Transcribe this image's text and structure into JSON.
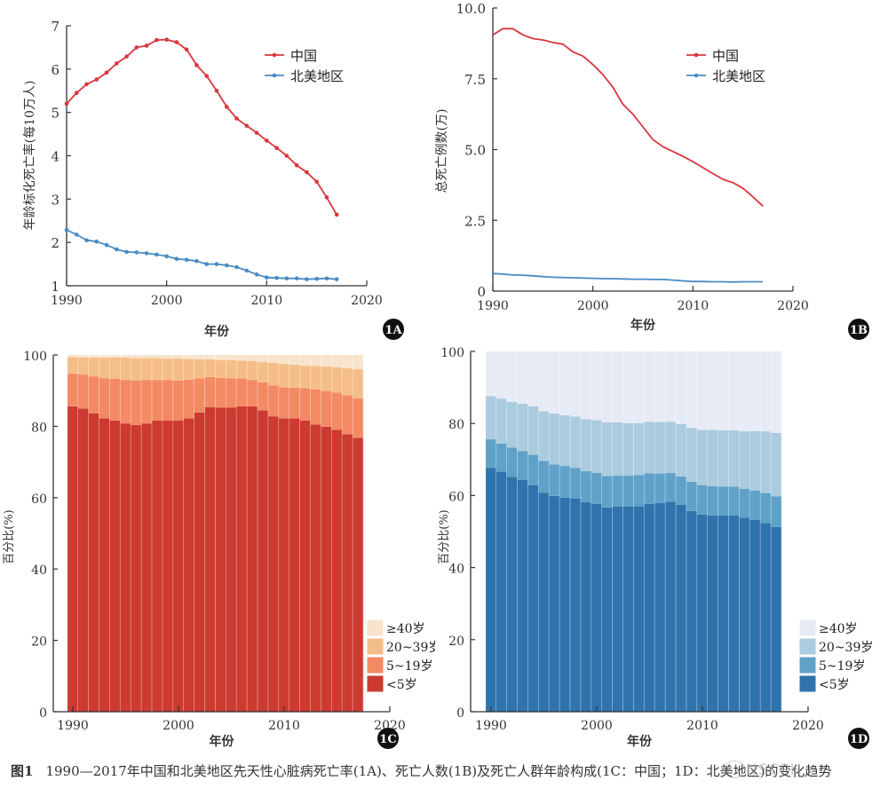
{
  "caption": {
    "label": "图1",
    "text": "1990—2017年中国和北美地区先天性心脏病死亡率(1A)、死亡人数(1B)及死亡人群年龄构成(1C：中国；1D：北美地区)的变化趋势",
    "watermark": "NSCPH"
  },
  "colors": {
    "china": "#d9363e",
    "north_america": "#4a8bc4",
    "c_lt5": "#cc3a30",
    "c_5_19": "#f48a64",
    "c_20_39": "#f5be88",
    "c_ge40": "#f8e4cc",
    "d_lt5": "#2f73ad",
    "d_5_19": "#5fa1c8",
    "d_20_39": "#abcbdf",
    "d_ge40": "#e6ebf5"
  },
  "chart_data": [
    {
      "id": "1A",
      "type": "line",
      "badge": "1A",
      "title": "",
      "xlabel": "年份",
      "ylabel": "年龄标化死亡率(每10万人)",
      "xlim": [
        1990,
        2020
      ],
      "ylim": [
        1,
        7
      ],
      "xticks": [
        1990,
        2000,
        2010,
        2020
      ],
      "yticks": [
        1,
        2,
        3,
        4,
        5,
        6,
        7
      ],
      "markers": true,
      "legend_position": "top-right",
      "x": [
        1990,
        1991,
        1992,
        1993,
        1994,
        1995,
        1996,
        1997,
        1998,
        1999,
        2000,
        2001,
        2002,
        2003,
        2004,
        2005,
        2006,
        2007,
        2008,
        2009,
        2010,
        2011,
        2012,
        2013,
        2014,
        2015,
        2016,
        2017
      ],
      "series": [
        {
          "name": "中国",
          "color_key": "china",
          "values": [
            5.2,
            5.45,
            5.65,
            5.76,
            5.92,
            6.13,
            6.29,
            6.5,
            6.54,
            6.67,
            6.68,
            6.62,
            6.45,
            6.09,
            5.84,
            5.5,
            5.13,
            4.86,
            4.69,
            4.53,
            4.35,
            4.18,
            4.0,
            3.78,
            3.62,
            3.4,
            3.04,
            2.64
          ]
        },
        {
          "name": "北美地区",
          "color_key": "north_america",
          "values": [
            2.29,
            2.18,
            2.05,
            2.02,
            1.94,
            1.84,
            1.78,
            1.77,
            1.75,
            1.72,
            1.68,
            1.62,
            1.6,
            1.57,
            1.5,
            1.5,
            1.47,
            1.43,
            1.35,
            1.26,
            1.19,
            1.18,
            1.17,
            1.17,
            1.15,
            1.16,
            1.17,
            1.15
          ]
        }
      ]
    },
    {
      "id": "1B",
      "type": "line",
      "badge": "1B",
      "title": "",
      "xlabel": "年份",
      "ylabel": "总死亡例数(万)",
      "xlim": [
        1990,
        2020
      ],
      "ylim": [
        0,
        10
      ],
      "xticks": [
        1990,
        2000,
        2010,
        2020
      ],
      "yticks": [
        0,
        2.5,
        5.0,
        7.5,
        10.0
      ],
      "ytick_labels": [
        "0",
        "2.5",
        "5.0",
        "7.5",
        "10.0"
      ],
      "markers": false,
      "legend_position": "top-right",
      "x": [
        1990,
        1991,
        1992,
        1993,
        1994,
        1995,
        1996,
        1997,
        1998,
        1999,
        2000,
        2001,
        2002,
        2003,
        2004,
        2005,
        2006,
        2007,
        2008,
        2009,
        2010,
        2011,
        2012,
        2013,
        2014,
        2015,
        2016,
        2017
      ],
      "series": [
        {
          "name": "中国",
          "color_key": "china",
          "values": [
            9.05,
            9.27,
            9.27,
            9.05,
            8.92,
            8.87,
            8.78,
            8.72,
            8.45,
            8.3,
            8.0,
            7.65,
            7.2,
            6.6,
            6.25,
            5.8,
            5.35,
            5.1,
            4.93,
            4.76,
            4.57,
            4.36,
            4.15,
            3.95,
            3.83,
            3.63,
            3.33,
            3.0
          ]
        },
        {
          "name": "北美地区",
          "color_key": "north_america",
          "values": [
            0.62,
            0.6,
            0.57,
            0.56,
            0.54,
            0.51,
            0.49,
            0.48,
            0.47,
            0.46,
            0.45,
            0.44,
            0.44,
            0.43,
            0.42,
            0.42,
            0.41,
            0.41,
            0.39,
            0.36,
            0.34,
            0.34,
            0.33,
            0.33,
            0.32,
            0.33,
            0.33,
            0.33
          ]
        }
      ]
    },
    {
      "id": "1C",
      "type": "bar",
      "stacked": true,
      "badge": "1C",
      "title": "",
      "xlabel": "年份",
      "ylabel": "百分比(%)",
      "xlim": [
        1988.5,
        2020
      ],
      "ylim": [
        0,
        100
      ],
      "xticks": [
        1990,
        2000,
        2010,
        2020
      ],
      "yticks": [
        0,
        20,
        40,
        60,
        80,
        100
      ],
      "legend_position": "bottom-right",
      "categories": [
        1990,
        1991,
        1992,
        1993,
        1994,
        1995,
        1996,
        1997,
        1998,
        1999,
        2000,
        2001,
        2002,
        2003,
        2004,
        2005,
        2006,
        2007,
        2008,
        2009,
        2010,
        2011,
        2012,
        2013,
        2014,
        2015,
        2016,
        2017
      ],
      "series": [
        {
          "name": "<5岁",
          "color_key": "c_lt5",
          "values": [
            85.6,
            85.0,
            83.6,
            82.2,
            81.6,
            80.8,
            80.4,
            80.8,
            81.6,
            81.6,
            81.6,
            82.2,
            83.9,
            85.4,
            85.2,
            85.2,
            85.6,
            85.6,
            84.5,
            82.8,
            82.2,
            82.2,
            81.6,
            80.5,
            79.9,
            79.0,
            77.8,
            76.8
          ]
        },
        {
          "name": "5~19岁",
          "color_key": "c_5_19",
          "values": [
            9.2,
            9.5,
            10.4,
            11.3,
            11.7,
            12.2,
            12.4,
            12.2,
            11.4,
            11.4,
            11.2,
            10.9,
            9.5,
            8.4,
            8.4,
            8.2,
            7.8,
            7.4,
            7.8,
            8.7,
            8.7,
            8.6,
            9.1,
            9.8,
            10.0,
            10.5,
            10.9,
            11.0
          ]
        },
        {
          "name": "20~39岁",
          "color_key": "c_20_39",
          "values": [
            4.6,
            4.8,
            5.3,
            5.8,
            6.0,
            6.3,
            6.3,
            6.1,
            6.1,
            6.0,
            6.2,
            5.8,
            5.4,
            5.0,
            5.0,
            5.2,
            5.0,
            5.3,
            5.7,
            6.3,
            6.6,
            6.5,
            6.3,
            6.6,
            6.9,
            7.1,
            7.6,
            8.2
          ]
        },
        {
          "name": "≥40岁",
          "color_key": "c_ge40",
          "values": [
            0.6,
            0.7,
            0.7,
            0.7,
            0.7,
            0.7,
            0.9,
            0.9,
            0.9,
            1.0,
            1.0,
            1.1,
            1.2,
            1.2,
            1.4,
            1.4,
            1.6,
            1.7,
            2.0,
            2.2,
            2.5,
            2.7,
            3.0,
            3.1,
            3.2,
            3.4,
            3.7,
            4.0
          ]
        }
      ],
      "legend": [
        "≥40岁",
        "20~39岁",
        "5~19岁",
        "<5岁"
      ]
    },
    {
      "id": "1D",
      "type": "bar",
      "stacked": true,
      "badge": "1D",
      "title": "",
      "xlabel": "年份",
      "ylabel": "百分比(%)",
      "xlim": [
        1988.5,
        2020
      ],
      "ylim": [
        0,
        100
      ],
      "xticks": [
        1990,
        2000,
        2010,
        2020
      ],
      "yticks": [
        0,
        20,
        40,
        60,
        80,
        100
      ],
      "legend_position": "bottom-right",
      "categories": [
        1990,
        1991,
        1992,
        1993,
        1994,
        1995,
        1996,
        1997,
        1998,
        1999,
        2000,
        2001,
        2002,
        2003,
        2004,
        2005,
        2006,
        2007,
        2008,
        2009,
        2010,
        2011,
        2012,
        2013,
        2014,
        2015,
        2016,
        2017
      ],
      "series": [
        {
          "name": "<5岁",
          "color_key": "d_lt5",
          "values": [
            67.7,
            66.6,
            65.2,
            64.3,
            62.9,
            60.8,
            59.9,
            59.4,
            59.2,
            58.2,
            57.7,
            56.7,
            56.9,
            56.9,
            57.0,
            57.7,
            57.9,
            58.3,
            57.4,
            55.7,
            54.7,
            54.5,
            54.5,
            54.5,
            53.8,
            53.2,
            52.4,
            51.3
          ]
        },
        {
          "name": "5~19岁",
          "color_key": "d_5_19",
          "values": [
            7.9,
            7.8,
            8.1,
            8.0,
            8.4,
            8.8,
            8.7,
            8.8,
            8.5,
            8.6,
            8.6,
            8.7,
            8.6,
            8.6,
            8.7,
            8.5,
            8.2,
            8.0,
            7.9,
            8.1,
            8.2,
            8.1,
            8.0,
            8.0,
            8.1,
            8.2,
            8.3,
            8.5
          ]
        },
        {
          "name": "20~39岁",
          "color_key": "d_20_39",
          "values": [
            12.0,
            12.5,
            12.7,
            13.2,
            13.5,
            13.8,
            14.2,
            14.1,
            14.2,
            14.4,
            14.6,
            14.9,
            14.8,
            14.6,
            14.4,
            14.3,
            14.3,
            14.2,
            14.5,
            15.0,
            15.3,
            15.6,
            15.6,
            15.6,
            15.9,
            16.5,
            17.1,
            17.6
          ]
        },
        {
          "name": "≥40岁",
          "color_key": "d_ge40",
          "values": [
            12.4,
            13.1,
            14.0,
            14.5,
            15.2,
            16.6,
            17.2,
            17.7,
            18.1,
            18.8,
            19.1,
            19.7,
            19.7,
            19.9,
            19.9,
            19.5,
            19.6,
            19.5,
            20.2,
            21.2,
            21.8,
            21.8,
            21.9,
            21.9,
            22.2,
            22.1,
            22.2,
            22.6
          ]
        }
      ],
      "legend": [
        "≥40岁",
        "20~39岁",
        "5~19岁",
        "<5岁"
      ]
    }
  ]
}
